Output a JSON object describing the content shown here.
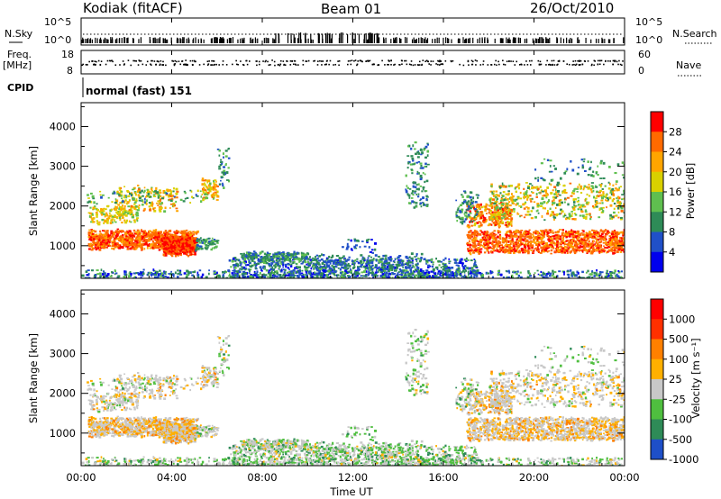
{
  "header": {
    "station": "Kodiak (fitACF)",
    "beam": "Beam 01",
    "date": "26/Oct/2010"
  },
  "top_panels": {
    "nsky_label": "N.Sky",
    "nsearch_label": "N.Search",
    "noise_ticks": [
      "10^5",
      "10^0"
    ],
    "freq_label": "Freq.",
    "freq_unit": "[MHz]",
    "freq_ticks": [
      "18",
      "8"
    ],
    "nave_label": "Nave",
    "nave_ticks": [
      "60",
      "0"
    ],
    "cpid_label": "CPID",
    "cpid_value": "normal (fast) 151"
  },
  "chart_data": [
    {
      "type": "heatmap",
      "name": "power",
      "ylabel": "Slant Range [km]",
      "xlabel": "",
      "ylim": [
        180,
        4600
      ],
      "yticks": [
        "4000",
        "3000",
        "2000",
        "1000"
      ],
      "colorbar_label": "Power [dB]",
      "colorbar_ticks": [
        "28",
        "24",
        "20",
        "16",
        "12",
        "8",
        "4"
      ],
      "colors": [
        "#0000ee",
        "#2050c8",
        "#2e8b57",
        "#5fbf4f",
        "#d9d000",
        "#ffa500",
        "#ff6a00",
        "#ff0000"
      ]
    },
    {
      "type": "heatmap",
      "name": "velocity",
      "ylabel": "Slant Range [km]",
      "xlabel": "Time UT",
      "ylim": [
        180,
        4600
      ],
      "yticks": [
        "4000",
        "3000",
        "2000",
        "1000"
      ],
      "xticks": [
        "00:00",
        "04:00",
        "08:00",
        "12:00",
        "16:00",
        "20:00",
        "00:00"
      ],
      "colorbar_label": "Velocity [m s⁻¹]",
      "colorbar_ticks": [
        "1000",
        "500",
        "100",
        "25",
        "-25",
        "-100",
        "-500",
        "-1000"
      ],
      "colors": [
        "#1e4fc8",
        "#2e8b57",
        "#4fbf3f",
        "#c8c8c8",
        "#ffb000",
        "#ff8000",
        "#ff3000",
        "#ff0000"
      ]
    }
  ]
}
